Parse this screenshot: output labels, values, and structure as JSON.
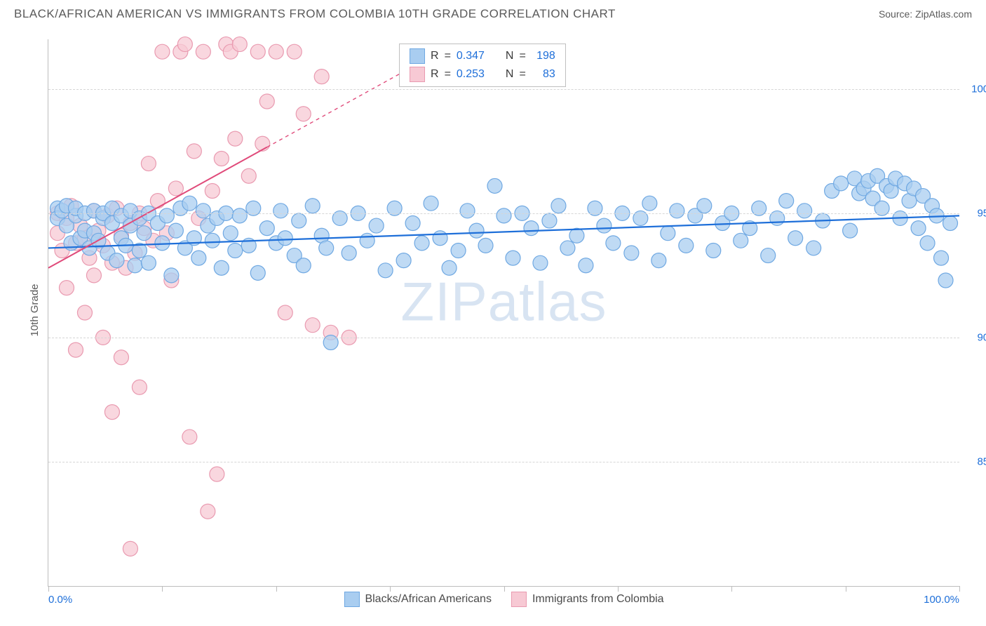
{
  "title": "BLACK/AFRICAN AMERICAN VS IMMIGRANTS FROM COLOMBIA 10TH GRADE CORRELATION CHART",
  "source": "Source: ZipAtlas.com",
  "watermark": "ZIPatlas",
  "ylabel": "10th Grade",
  "chart": {
    "type": "scatter",
    "x_range": [
      0,
      100
    ],
    "y_range": [
      80,
      102
    ],
    "grid_color": "#d6d6d6",
    "axis_color": "#bdbdbd",
    "background_color": "#ffffff",
    "y_ticks": [
      85.0,
      90.0,
      95.0,
      100.0
    ],
    "y_tick_labels": [
      "85.0%",
      "90.0%",
      "95.0%",
      "100.0%"
    ],
    "x_ticks": [
      0,
      12.5,
      25,
      37.5,
      50,
      62.5,
      75,
      87.5,
      100
    ],
    "x_tick_labels_shown": {
      "0": "0.0%",
      "100": "100.0%"
    },
    "series": [
      {
        "name": "Blacks/African Americans",
        "color_fill": "#a9cdf0",
        "color_stroke": "#6fa8e2",
        "marker_radius": 10.5,
        "marker_opacity": 0.75,
        "r_value": "0.347",
        "n_value": "198",
        "trend": {
          "x1": 0,
          "y1": 93.6,
          "x2": 100,
          "y2": 94.9,
          "color": "#1e6fd9",
          "width": 2.2,
          "dash_after": null
        },
        "points": [
          [
            1,
            95.2
          ],
          [
            1,
            94.8
          ],
          [
            1.5,
            95.1
          ],
          [
            2,
            94.5
          ],
          [
            2,
            95.3
          ],
          [
            2.5,
            93.8
          ],
          [
            3,
            94.9
          ],
          [
            3,
            95.2
          ],
          [
            3.5,
            94.0
          ],
          [
            4,
            95.0
          ],
          [
            4,
            94.3
          ],
          [
            4.5,
            93.6
          ],
          [
            5,
            95.1
          ],
          [
            5,
            94.2
          ],
          [
            5.5,
            93.9
          ],
          [
            6,
            94.8
          ],
          [
            6,
            95.0
          ],
          [
            6.5,
            93.4
          ],
          [
            7,
            94.6
          ],
          [
            7,
            95.2
          ],
          [
            7.5,
            93.1
          ],
          [
            8,
            94.0
          ],
          [
            8,
            94.9
          ],
          [
            8.5,
            93.7
          ],
          [
            9,
            94.5
          ],
          [
            9,
            95.1
          ],
          [
            9.5,
            92.9
          ],
          [
            10,
            94.8
          ],
          [
            10,
            93.5
          ],
          [
            10.5,
            94.2
          ],
          [
            11,
            95.0
          ],
          [
            11,
            93.0
          ],
          [
            12,
            94.6
          ],
          [
            12.5,
            93.8
          ],
          [
            13,
            94.9
          ],
          [
            13.5,
            92.5
          ],
          [
            14,
            94.3
          ],
          [
            14.5,
            95.2
          ],
          [
            15,
            93.6
          ],
          [
            15.5,
            95.4
          ],
          [
            16,
            94.0
          ],
          [
            16.5,
            93.2
          ],
          [
            17,
            95.1
          ],
          [
            17.5,
            94.5
          ],
          [
            18,
            93.9
          ],
          [
            18.5,
            94.8
          ],
          [
            19,
            92.8
          ],
          [
            19.5,
            95.0
          ],
          [
            20,
            94.2
          ],
          [
            20.5,
            93.5
          ],
          [
            21,
            94.9
          ],
          [
            22,
            93.7
          ],
          [
            22.5,
            95.2
          ],
          [
            23,
            92.6
          ],
          [
            24,
            94.4
          ],
          [
            25,
            93.8
          ],
          [
            25.5,
            95.1
          ],
          [
            26,
            94.0
          ],
          [
            27,
            93.3
          ],
          [
            27.5,
            94.7
          ],
          [
            28,
            92.9
          ],
          [
            29,
            95.3
          ],
          [
            30,
            94.1
          ],
          [
            30.5,
            93.6
          ],
          [
            31,
            89.8
          ],
          [
            32,
            94.8
          ],
          [
            33,
            93.4
          ],
          [
            34,
            95.0
          ],
          [
            35,
            93.9
          ],
          [
            36,
            94.5
          ],
          [
            37,
            92.7
          ],
          [
            38,
            95.2
          ],
          [
            39,
            93.1
          ],
          [
            40,
            94.6
          ],
          [
            41,
            93.8
          ],
          [
            42,
            95.4
          ],
          [
            43,
            94.0
          ],
          [
            44,
            92.8
          ],
          [
            45,
            93.5
          ],
          [
            46,
            95.1
          ],
          [
            47,
            94.3
          ],
          [
            48,
            93.7
          ],
          [
            49,
            96.1
          ],
          [
            50,
            94.9
          ],
          [
            51,
            93.2
          ],
          [
            52,
            95.0
          ],
          [
            53,
            94.4
          ],
          [
            54,
            93.0
          ],
          [
            55,
            94.7
          ],
          [
            56,
            95.3
          ],
          [
            57,
            93.6
          ],
          [
            58,
            94.1
          ],
          [
            59,
            92.9
          ],
          [
            60,
            95.2
          ],
          [
            61,
            94.5
          ],
          [
            62,
            93.8
          ],
          [
            63,
            95.0
          ],
          [
            64,
            93.4
          ],
          [
            65,
            94.8
          ],
          [
            66,
            95.4
          ],
          [
            67,
            93.1
          ],
          [
            68,
            94.2
          ],
          [
            69,
            95.1
          ],
          [
            70,
            93.7
          ],
          [
            71,
            94.9
          ],
          [
            72,
            95.3
          ],
          [
            73,
            93.5
          ],
          [
            74,
            94.6
          ],
          [
            75,
            95.0
          ],
          [
            76,
            93.9
          ],
          [
            77,
            94.4
          ],
          [
            78,
            95.2
          ],
          [
            79,
            93.3
          ],
          [
            80,
            94.8
          ],
          [
            81,
            95.5
          ],
          [
            82,
            94.0
          ],
          [
            83,
            95.1
          ],
          [
            84,
            93.6
          ],
          [
            85,
            94.7
          ],
          [
            86,
            95.9
          ],
          [
            87,
            96.2
          ],
          [
            88,
            94.3
          ],
          [
            88.5,
            96.4
          ],
          [
            89,
            95.8
          ],
          [
            89.5,
            96.0
          ],
          [
            90,
            96.3
          ],
          [
            90.5,
            95.6
          ],
          [
            91,
            96.5
          ],
          [
            91.5,
            95.2
          ],
          [
            92,
            96.1
          ],
          [
            92.5,
            95.9
          ],
          [
            93,
            96.4
          ],
          [
            93.5,
            94.8
          ],
          [
            94,
            96.2
          ],
          [
            94.5,
            95.5
          ],
          [
            95,
            96.0
          ],
          [
            95.5,
            94.4
          ],
          [
            96,
            95.7
          ],
          [
            96.5,
            93.8
          ],
          [
            97,
            95.3
          ],
          [
            97.5,
            94.9
          ],
          [
            98,
            93.2
          ],
          [
            98.5,
            92.3
          ],
          [
            99,
            94.6
          ]
        ]
      },
      {
        "name": "Immigrants from Colombia",
        "color_fill": "#f7c9d4",
        "color_stroke": "#e99ab0",
        "marker_radius": 10.5,
        "marker_opacity": 0.75,
        "r_value": "0.253",
        "n_value": "83",
        "trend": {
          "x1": 0,
          "y1": 92.8,
          "x2": 40,
          "y2": 100.9,
          "color": "#e04a7a",
          "width": 2.0,
          "dash_after": 24
        },
        "points": [
          [
            1,
            95.0
          ],
          [
            1,
            94.2
          ],
          [
            1.5,
            93.5
          ],
          [
            2,
            94.8
          ],
          [
            2,
            92.0
          ],
          [
            2.5,
            95.3
          ],
          [
            3,
            93.8
          ],
          [
            3,
            89.5
          ],
          [
            3.5,
            94.5
          ],
          [
            4,
            94.0
          ],
          [
            4,
            91.0
          ],
          [
            4.5,
            93.2
          ],
          [
            5,
            95.1
          ],
          [
            5,
            92.5
          ],
          [
            5.5,
            94.3
          ],
          [
            6,
            90.0
          ],
          [
            6,
            93.7
          ],
          [
            6.5,
            94.9
          ],
          [
            7,
            87.0
          ],
          [
            7,
            93.0
          ],
          [
            7.5,
            95.2
          ],
          [
            8,
            89.2
          ],
          [
            8,
            94.1
          ],
          [
            8.5,
            92.8
          ],
          [
            9,
            94.6
          ],
          [
            9,
            81.5
          ],
          [
            9.5,
            93.4
          ],
          [
            10,
            95.0
          ],
          [
            10,
            88.0
          ],
          [
            10.5,
            94.4
          ],
          [
            11,
            97.0
          ],
          [
            11.5,
            93.9
          ],
          [
            12,
            95.5
          ],
          [
            12.5,
            101.5
          ],
          [
            13,
            94.2
          ],
          [
            13.5,
            92.3
          ],
          [
            14,
            96.0
          ],
          [
            14.5,
            101.5
          ],
          [
            15,
            101.8
          ],
          [
            15.5,
            86.0
          ],
          [
            16,
            97.5
          ],
          [
            16.5,
            94.8
          ],
          [
            17,
            101.5
          ],
          [
            17.5,
            83.0
          ],
          [
            18,
            95.9
          ],
          [
            18.5,
            84.5
          ],
          [
            19,
            97.2
          ],
          [
            19.5,
            101.8
          ],
          [
            20,
            101.5
          ],
          [
            20.5,
            98.0
          ],
          [
            21,
            101.8
          ],
          [
            22,
            96.5
          ],
          [
            23,
            101.5
          ],
          [
            23.5,
            97.8
          ],
          [
            24,
            99.5
          ],
          [
            25,
            101.5
          ],
          [
            26,
            91.0
          ],
          [
            27,
            101.5
          ],
          [
            28,
            99.0
          ],
          [
            29,
            90.5
          ],
          [
            30,
            100.5
          ],
          [
            31,
            90.2
          ],
          [
            33,
            90.0
          ]
        ]
      }
    ]
  },
  "corr_legend": {
    "r_label": "R",
    "n_label": "N",
    "eq": "="
  },
  "bottom_legend": {
    "items": [
      {
        "label": "Blacks/African Americans",
        "fill": "#a9cdf0",
        "stroke": "#6fa8e2"
      },
      {
        "label": "Immigrants from Colombia",
        "fill": "#f7c9d4",
        "stroke": "#e99ab0"
      }
    ]
  }
}
